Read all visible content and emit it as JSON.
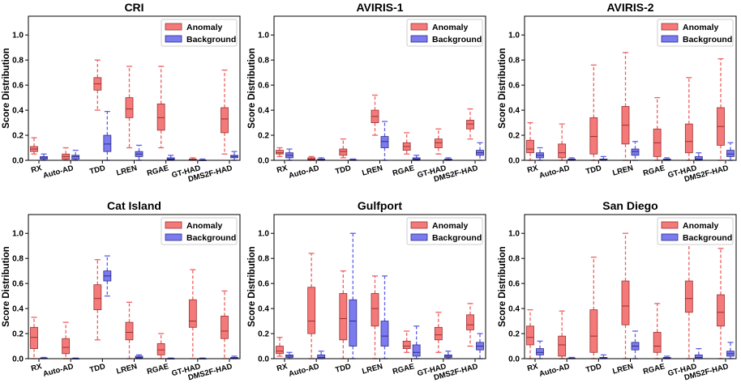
{
  "colors": {
    "anomaly": "#f47a7a",
    "anomaly_edge": "#9a3030",
    "anomaly_whisker": "#ef6060",
    "background": "#7b7bef",
    "background_edge": "#2c2c8a",
    "background_whisker": "#6060ea"
  },
  "chart_data": [
    {
      "type": "boxplot",
      "title": "CRI",
      "ylabel": "Score Distribution",
      "ylim": [
        0,
        1.15
      ],
      "yticks": [
        "0.0",
        "0.2",
        "0.4",
        "0.6",
        "0.8",
        "1.0"
      ],
      "categories": [
        "RX",
        "Auto-AD",
        "TDD",
        "LREN",
        "RGAE",
        "GT-HAD",
        "DMS2F-HAD"
      ],
      "legend": [
        "Anomaly",
        "Background"
      ],
      "series": [
        {
          "name": "Anomaly",
          "boxes": [
            {
              "whislo": 0.05,
              "q1": 0.07,
              "med": 0.09,
              "q3": 0.11,
              "whishi": 0.18
            },
            {
              "whislo": 0.0,
              "q1": 0.01,
              "med": 0.03,
              "q3": 0.05,
              "whishi": 0.1
            },
            {
              "whislo": 0.4,
              "q1": 0.56,
              "med": 0.61,
              "q3": 0.66,
              "whishi": 0.8
            },
            {
              "whislo": 0.1,
              "q1": 0.34,
              "med": 0.41,
              "q3": 0.5,
              "whishi": 0.75
            },
            {
              "whislo": 0.1,
              "q1": 0.24,
              "med": 0.34,
              "q3": 0.45,
              "whishi": 0.75
            },
            {
              "whislo": 0.0,
              "q1": 0.0,
              "med": 0.005,
              "q3": 0.01,
              "whishi": 0.02
            },
            {
              "whislo": 0.05,
              "q1": 0.22,
              "med": 0.33,
              "q3": 0.42,
              "whishi": 0.72
            }
          ]
        },
        {
          "name": "Background",
          "boxes": [
            {
              "whislo": 0.0,
              "q1": 0.01,
              "med": 0.02,
              "q3": 0.03,
              "whishi": 0.05
            },
            {
              "whislo": 0.0,
              "q1": 0.01,
              "med": 0.03,
              "q3": 0.04,
              "whishi": 0.08
            },
            {
              "whislo": 0.0,
              "q1": 0.07,
              "med": 0.13,
              "q3": 0.2,
              "whishi": 0.39
            },
            {
              "whislo": 0.0,
              "q1": 0.03,
              "med": 0.05,
              "q3": 0.07,
              "whishi": 0.12
            },
            {
              "whislo": 0.0,
              "q1": 0.005,
              "med": 0.01,
              "q3": 0.02,
              "whishi": 0.04
            },
            {
              "whislo": 0.0,
              "q1": 0.0,
              "med": 0.0,
              "q3": 0.002,
              "whishi": 0.01
            },
            {
              "whislo": 0.0,
              "q1": 0.02,
              "med": 0.03,
              "q3": 0.04,
              "whishi": 0.07
            }
          ]
        }
      ]
    },
    {
      "type": "boxplot",
      "title": "AVIRIS-1",
      "ylabel": "Score Distribution",
      "ylim": [
        0,
        1.15
      ],
      "yticks": [
        "0.0",
        "0.2",
        "0.4",
        "0.6",
        "0.8",
        "1.0"
      ],
      "categories": [
        "RX",
        "Auto-AD",
        "TDD",
        "LREN",
        "RGAE",
        "GT-HAD",
        "DMS2F-HAD"
      ],
      "legend": [
        "Anomaly",
        "Background"
      ],
      "series": [
        {
          "name": "Anomaly",
          "boxes": [
            {
              "whislo": 0.03,
              "q1": 0.05,
              "med": 0.06,
              "q3": 0.08,
              "whishi": 0.1
            },
            {
              "whislo": 0.0,
              "q1": 0.005,
              "med": 0.01,
              "q3": 0.02,
              "whishi": 0.03
            },
            {
              "whislo": 0.02,
              "q1": 0.04,
              "med": 0.07,
              "q3": 0.09,
              "whishi": 0.17
            },
            {
              "whislo": 0.2,
              "q1": 0.3,
              "med": 0.35,
              "q3": 0.4,
              "whishi": 0.52
            },
            {
              "whislo": 0.05,
              "q1": 0.08,
              "med": 0.11,
              "q3": 0.14,
              "whishi": 0.22
            },
            {
              "whislo": 0.05,
              "q1": 0.1,
              "med": 0.14,
              "q3": 0.17,
              "whishi": 0.25
            },
            {
              "whislo": 0.17,
              "q1": 0.25,
              "med": 0.29,
              "q3": 0.32,
              "whishi": 0.41
            }
          ]
        },
        {
          "name": "Background",
          "boxes": [
            {
              "whislo": 0.0,
              "q1": 0.02,
              "med": 0.04,
              "q3": 0.06,
              "whishi": 0.09
            },
            {
              "whislo": 0.0,
              "q1": 0.002,
              "med": 0.005,
              "q3": 0.01,
              "whishi": 0.02
            },
            {
              "whislo": 0.0,
              "q1": 0.0,
              "med": 0.002,
              "q3": 0.005,
              "whishi": 0.01
            },
            {
              "whislo": 0.0,
              "q1": 0.1,
              "med": 0.15,
              "q3": 0.19,
              "whishi": 0.31
            },
            {
              "whislo": 0.0,
              "q1": 0.005,
              "med": 0.01,
              "q3": 0.02,
              "whishi": 0.04
            },
            {
              "whislo": 0.0,
              "q1": 0.003,
              "med": 0.006,
              "q3": 0.01,
              "whishi": 0.02
            },
            {
              "whislo": 0.0,
              "q1": 0.04,
              "med": 0.06,
              "q3": 0.08,
              "whishi": 0.14
            }
          ]
        }
      ]
    },
    {
      "type": "boxplot",
      "title": "AVIRIS-2",
      "ylabel": "Score Distribution",
      "ylim": [
        0,
        1.15
      ],
      "yticks": [
        "0.0",
        "0.2",
        "0.4",
        "0.6",
        "0.8",
        "1.0"
      ],
      "categories": [
        "RX",
        "Auto-AD",
        "TDD",
        "LREN",
        "RGAE",
        "GT-HAD",
        "DMS2F-HAD"
      ],
      "legend": [
        "Anomaly",
        "Background"
      ],
      "series": [
        {
          "name": "Anomaly",
          "boxes": [
            {
              "whislo": 0.0,
              "q1": 0.06,
              "med": 0.09,
              "q3": 0.16,
              "whishi": 0.3
            },
            {
              "whislo": 0.0,
              "q1": 0.02,
              "med": 0.06,
              "q3": 0.13,
              "whishi": 0.29
            },
            {
              "whislo": 0.0,
              "q1": 0.05,
              "med": 0.19,
              "q3": 0.34,
              "whishi": 0.76
            },
            {
              "whislo": 0.0,
              "q1": 0.13,
              "med": 0.28,
              "q3": 0.43,
              "whishi": 0.86
            },
            {
              "whislo": 0.0,
              "q1": 0.03,
              "med": 0.14,
              "q3": 0.25,
              "whishi": 0.5
            },
            {
              "whislo": 0.0,
              "q1": 0.06,
              "med": 0.15,
              "q3": 0.29,
              "whishi": 0.66
            },
            {
              "whislo": 0.0,
              "q1": 0.12,
              "med": 0.27,
              "q3": 0.42,
              "whishi": 0.81
            }
          ]
        },
        {
          "name": "Background",
          "boxes": [
            {
              "whislo": 0.0,
              "q1": 0.02,
              "med": 0.04,
              "q3": 0.06,
              "whishi": 0.1
            },
            {
              "whislo": 0.0,
              "q1": 0.002,
              "med": 0.005,
              "q3": 0.01,
              "whishi": 0.02
            },
            {
              "whislo": 0.0,
              "q1": 0.002,
              "med": 0.005,
              "q3": 0.01,
              "whishi": 0.03
            },
            {
              "whislo": 0.0,
              "q1": 0.04,
              "med": 0.07,
              "q3": 0.09,
              "whishi": 0.15
            },
            {
              "whislo": 0.0,
              "q1": 0.002,
              "med": 0.005,
              "q3": 0.01,
              "whishi": 0.02
            },
            {
              "whislo": 0.0,
              "q1": 0.003,
              "med": 0.01,
              "q3": 0.03,
              "whishi": 0.06
            },
            {
              "whislo": 0.0,
              "q1": 0.03,
              "med": 0.05,
              "q3": 0.08,
              "whishi": 0.14
            }
          ]
        }
      ]
    },
    {
      "type": "boxplot",
      "title": "Cat Island",
      "ylabel": "Score Distribution",
      "ylim": [
        0,
        1.15
      ],
      "yticks": [
        "0.0",
        "0.2",
        "0.4",
        "0.6",
        "0.8",
        "1.0"
      ],
      "categories": [
        "RX",
        "Auto-AD",
        "TDD",
        "LREN",
        "RGAE",
        "GT-HAD",
        "DMS2F-HAD"
      ],
      "legend": [
        "Anomaly",
        "Background"
      ],
      "series": [
        {
          "name": "Anomaly",
          "boxes": [
            {
              "whislo": 0.0,
              "q1": 0.08,
              "med": 0.17,
              "q3": 0.25,
              "whishi": 0.33
            },
            {
              "whislo": 0.0,
              "q1": 0.04,
              "med": 0.09,
              "q3": 0.16,
              "whishi": 0.29
            },
            {
              "whislo": 0.15,
              "q1": 0.39,
              "med": 0.48,
              "q3": 0.59,
              "whishi": 0.79
            },
            {
              "whislo": 0.0,
              "q1": 0.15,
              "med": 0.21,
              "q3": 0.29,
              "whishi": 0.45
            },
            {
              "whislo": 0.0,
              "q1": 0.03,
              "med": 0.07,
              "q3": 0.12,
              "whishi": 0.2
            },
            {
              "whislo": 0.0,
              "q1": 0.25,
              "med": 0.3,
              "q3": 0.47,
              "whishi": 0.71
            },
            {
              "whislo": 0.0,
              "q1": 0.16,
              "med": 0.22,
              "q3": 0.34,
              "whishi": 0.54
            }
          ]
        },
        {
          "name": "Background",
          "boxes": [
            {
              "whislo": 0.0,
              "q1": 0.0,
              "med": 0.002,
              "q3": 0.005,
              "whishi": 0.01
            },
            {
              "whislo": 0.0,
              "q1": 0.0,
              "med": 0.0,
              "q3": 0.002,
              "whishi": 0.005
            },
            {
              "whislo": 0.5,
              "q1": 0.62,
              "med": 0.66,
              "q3": 0.7,
              "whishi": 0.82
            },
            {
              "whislo": 0.0,
              "q1": 0.005,
              "med": 0.01,
              "q3": 0.02,
              "whishi": 0.03
            },
            {
              "whislo": 0.0,
              "q1": 0.0,
              "med": 0.0,
              "q3": 0.002,
              "whishi": 0.005
            },
            {
              "whislo": 0.0,
              "q1": 0.0,
              "med": 0.0,
              "q3": 0.002,
              "whishi": 0.005
            },
            {
              "whislo": 0.0,
              "q1": 0.002,
              "med": 0.005,
              "q3": 0.01,
              "whishi": 0.02
            }
          ]
        }
      ]
    },
    {
      "type": "boxplot",
      "title": "Gulfport",
      "ylabel": "Score Distribution",
      "ylim": [
        0,
        1.15
      ],
      "yticks": [
        "0.0",
        "0.2",
        "0.4",
        "0.6",
        "0.8",
        "1.0"
      ],
      "categories": [
        "RX",
        "Auto-AD",
        "TDD",
        "LREN",
        "RGAE",
        "GT-HAD",
        "DMS2F-HAD"
      ],
      "legend": [
        "Anomaly",
        "Background"
      ],
      "series": [
        {
          "name": "Anomaly",
          "boxes": [
            {
              "whislo": 0.02,
              "q1": 0.04,
              "med": 0.06,
              "q3": 0.1,
              "whishi": 0.17
            },
            {
              "whislo": 0.0,
              "q1": 0.2,
              "med": 0.3,
              "q3": 0.57,
              "whishi": 0.84
            },
            {
              "whislo": 0.0,
              "q1": 0.15,
              "med": 0.32,
              "q3": 0.52,
              "whishi": 0.7
            },
            {
              "whislo": 0.0,
              "q1": 0.26,
              "med": 0.4,
              "q3": 0.52,
              "whishi": 0.66
            },
            {
              "whislo": 0.05,
              "q1": 0.08,
              "med": 0.1,
              "q3": 0.14,
              "whishi": 0.22
            },
            {
              "whislo": 0.05,
              "q1": 0.15,
              "med": 0.19,
              "q3": 0.25,
              "whishi": 0.37
            },
            {
              "whislo": 0.1,
              "q1": 0.23,
              "med": 0.27,
              "q3": 0.35,
              "whishi": 0.44
            }
          ]
        },
        {
          "name": "Background",
          "boxes": [
            {
              "whislo": 0.0,
              "q1": 0.01,
              "med": 0.02,
              "q3": 0.03,
              "whishi": 0.05
            },
            {
              "whislo": 0.0,
              "q1": 0.0,
              "med": 0.01,
              "q3": 0.03,
              "whishi": 0.06
            },
            {
              "whislo": 0.0,
              "q1": 0.1,
              "med": 0.3,
              "q3": 0.47,
              "whishi": 1.0
            },
            {
              "whislo": 0.0,
              "q1": 0.1,
              "med": 0.18,
              "q3": 0.3,
              "whishi": 0.66
            },
            {
              "whislo": 0.0,
              "q1": 0.02,
              "med": 0.05,
              "q3": 0.11,
              "whishi": 0.26
            },
            {
              "whislo": 0.0,
              "q1": 0.01,
              "med": 0.02,
              "q3": 0.03,
              "whishi": 0.06
            },
            {
              "whislo": 0.0,
              "q1": 0.07,
              "med": 0.1,
              "q3": 0.13,
              "whishi": 0.2
            }
          ]
        }
      ]
    },
    {
      "type": "boxplot",
      "title": "San Diego",
      "ylabel": "Score Distribution",
      "ylim": [
        0,
        1.15
      ],
      "yticks": [
        "0.0",
        "0.2",
        "0.4",
        "0.6",
        "0.8",
        "1.0"
      ],
      "categories": [
        "RX",
        "Auto-AD",
        "TDD",
        "LREN",
        "RGAE",
        "GT-HAD",
        "DMS2F-HAD"
      ],
      "legend": [
        "Anomaly",
        "Background"
      ],
      "series": [
        {
          "name": "Anomaly",
          "boxes": [
            {
              "whislo": 0.0,
              "q1": 0.11,
              "med": 0.17,
              "q3": 0.26,
              "whishi": 0.39
            },
            {
              "whislo": 0.0,
              "q1": 0.02,
              "med": 0.11,
              "q3": 0.18,
              "whishi": 0.38
            },
            {
              "whislo": 0.0,
              "q1": 0.05,
              "med": 0.18,
              "q3": 0.39,
              "whishi": 0.81
            },
            {
              "whislo": 0.0,
              "q1": 0.27,
              "med": 0.42,
              "q3": 0.62,
              "whishi": 1.0
            },
            {
              "whislo": 0.0,
              "q1": 0.05,
              "med": 0.1,
              "q3": 0.21,
              "whishi": 0.44
            },
            {
              "whislo": 0.0,
              "q1": 0.37,
              "med": 0.48,
              "q3": 0.62,
              "whishi": 1.0
            },
            {
              "whislo": 0.0,
              "q1": 0.26,
              "med": 0.37,
              "q3": 0.51,
              "whishi": 0.88
            }
          ]
        },
        {
          "name": "Background",
          "boxes": [
            {
              "whislo": 0.0,
              "q1": 0.03,
              "med": 0.05,
              "q3": 0.08,
              "whishi": 0.14
            },
            {
              "whislo": 0.0,
              "q1": 0.0,
              "med": 0.002,
              "q3": 0.005,
              "whishi": 0.01
            },
            {
              "whislo": 0.0,
              "q1": 0.0,
              "med": 0.005,
              "q3": 0.01,
              "whishi": 0.03
            },
            {
              "whislo": 0.0,
              "q1": 0.07,
              "med": 0.1,
              "q3": 0.13,
              "whishi": 0.22
            },
            {
              "whislo": 0.0,
              "q1": 0.0,
              "med": 0.005,
              "q3": 0.01,
              "whishi": 0.02
            },
            {
              "whislo": 0.0,
              "q1": 0.0,
              "med": 0.01,
              "q3": 0.03,
              "whishi": 0.08
            },
            {
              "whislo": 0.0,
              "q1": 0.02,
              "med": 0.04,
              "q3": 0.06,
              "whishi": 0.13
            }
          ]
        }
      ]
    }
  ]
}
